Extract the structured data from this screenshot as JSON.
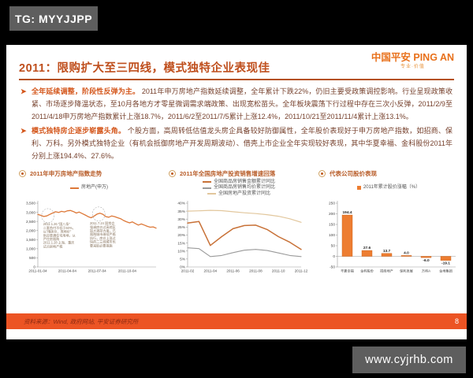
{
  "page": {
    "tg_label": "TG: MYYJJPP",
    "site_label": "www.cyjrhb.com"
  },
  "slide": {
    "title": "2011：限购扩大至三四线，模式独特企业表现佳",
    "logo": {
      "cn": "中国平安",
      "en": "PING AN",
      "tagline": "专业·价值"
    },
    "bullets": [
      {
        "lead": "全年延续调整，阶段性反弹为主。",
        "body": "2011年申万房地产指数延续调整，全年累计下跌22%，仍旧主要受政策调控影响。行业呈现政策收紧、市场逐步降温状态，至10月各地方才零星微调需求端政策、出现宽松苗头。全年板块震荡下行过程中存在三次小反弹，2011/2/9至2011/4/18申万房地产指数累计上涨18.7%，2011/6/2至2011/7/5累计上涨12.4%，2011/10/21至2011/11/4累计上涨13.1%。"
      },
      {
        "lead": "模式独特房企逐步崭露头角。",
        "body": "个股方面，高周转低估值龙头房企具备较好防御属性，全年股价表现好于申万房地产指数，如招商、保利、万科。另外模式独特企业（有机会抵御房地产开发周期波动）、借壳上市企业全年实现较好表现，其中华夏幸福、金科股份2011年分别上涨194.4%、27.6%。"
      }
    ],
    "footer": {
      "source": "资料来源：Wind, 政府网站, 平安证券研究所",
      "page_number": "8"
    }
  },
  "chart_data": [
    {
      "type": "line",
      "title": "2011年申万房地产指数走势",
      "legend": [
        {
          "label": "房地产(申万)",
          "color": "#dd7838",
          "marker": "line"
        }
      ],
      "ylim": [
        0,
        3500
      ],
      "yticks": [
        0,
        500,
        1000,
        1500,
        2000,
        2500,
        3000,
        3500
      ],
      "y_format": "thousands",
      "xticks": {
        "labels": [
          "2011-01-04",
          "2011-04-04",
          "2011-07-04",
          "2011-10-04"
        ],
        "fracs": [
          0.0,
          0.249,
          0.501,
          0.756
        ]
      },
      "series": [
        {
          "name": "房地产(申万)",
          "color": "#dd7838",
          "width": 1.3,
          "values": [
            2880,
            2830,
            2770,
            2800,
            2880,
            2960,
            3030,
            2990,
            3050,
            3020,
            3080,
            3100,
            3040,
            2960,
            3010,
            2930,
            2850,
            2760,
            2700,
            2790,
            2900,
            2950,
            2890,
            2760,
            2730,
            2800,
            2760,
            2700,
            2650,
            2550,
            2480,
            2420,
            2470,
            2380,
            2300,
            2360,
            2300,
            2230,
            2180,
            2200,
            2130
          ]
        }
      ],
      "annotations": [
        {
          "circle": {
            "x": 0.085,
            "y": 2810,
            "r": 8
          },
          "text": {
            "x": 0.045,
            "y": 2280
          },
          "lines": [
            "2011.1.26 “国八条”",
            "二套首付不低于60%，",
            "以“限房价、竞地价”",
            "供应普通住宅用地，从",
            "严住房限购",
            "2011.1.28 上海、重庆",
            "试点房地产税"
          ]
        },
        {
          "circle": {
            "x": 0.515,
            "y": 2905,
            "r": 8
          },
          "text": {
            "x": 0.44,
            "y": 2330
          },
          "lines": [
            "2011.7.24 国常会",
            "强调房价过高地区",
            "加大调控力度，已",
            "限购城市继续严格",
            "执行，房价上涨过",
            "快的二三线城市也",
            "要采取必要措施"
          ]
        }
      ]
    },
    {
      "type": "line",
      "title": "2011年全国房地产投资销售增速回落",
      "legend": [
        {
          "label": "全国商品房销售金额累计同比",
          "color": "#c87137",
          "marker": "line"
        },
        {
          "label": "全国商品房销售均价累计同比",
          "color": "#9a9a9a",
          "marker": "line"
        },
        {
          "label": "全国房地产投资累计同比",
          "color": "#e2c79d",
          "marker": "line"
        }
      ],
      "ylim": [
        0,
        40
      ],
      "yticks": [
        0,
        5,
        10,
        15,
        20,
        25,
        30,
        35,
        40
      ],
      "y_format": "pct",
      "right": 170,
      "xticks": {
        "labels": [
          "2011-02",
          "2011-04",
          "2011-06",
          "2011-08",
          "2011-10",
          "2011-12"
        ],
        "fracs": [
          0.0,
          0.2,
          0.4,
          0.6,
          0.8,
          1.0
        ]
      },
      "series": [
        {
          "name": "全国房地产投资累计同比",
          "color": "#e2c79d",
          "width": 1.2,
          "values": [
            35.0,
            35.2,
            35.5,
            35.3,
            34.6,
            34.0,
            33.5,
            32.8,
            31.8,
            30.2,
            28.0
          ]
        },
        {
          "name": "全国商品房销售金额累计同比",
          "color": "#c87137",
          "width": 1.5,
          "values": [
            27.5,
            28.5,
            13.5,
            19.0,
            24.0,
            26.0,
            26.2,
            23.5,
            19.0,
            15.5,
            11.0
          ]
        },
        {
          "name": "全国商品房销售均价累计同比",
          "color": "#9a9a9a",
          "width": 1.1,
          "values": [
            12.0,
            11.5,
            6.5,
            7.2,
            9.0,
            10.5,
            11.0,
            10.3,
            8.8,
            7.2,
            6.5
          ]
        }
      ],
      "annotations": []
    },
    {
      "type": "bar",
      "title": "代表公司股价表现",
      "legend": [
        {
          "label": "2011年累计股价涨幅（%）",
          "color": "#ed7d31",
          "marker": "square"
        }
      ],
      "ylim": [
        -50,
        250
      ],
      "yticks": [
        -50,
        0,
        50,
        100,
        150,
        200,
        250
      ],
      "categories": [
        "华夏幸福",
        "金科股份",
        "招商地产",
        "保利发展",
        "万科A",
        "金地集团"
      ],
      "values": [
        194.4,
        27.6,
        13.7,
        4.0,
        -6.0,
        -19.1
      ],
      "bar_color": "#ed7d31",
      "bar_edge": "#c55a11"
    }
  ]
}
